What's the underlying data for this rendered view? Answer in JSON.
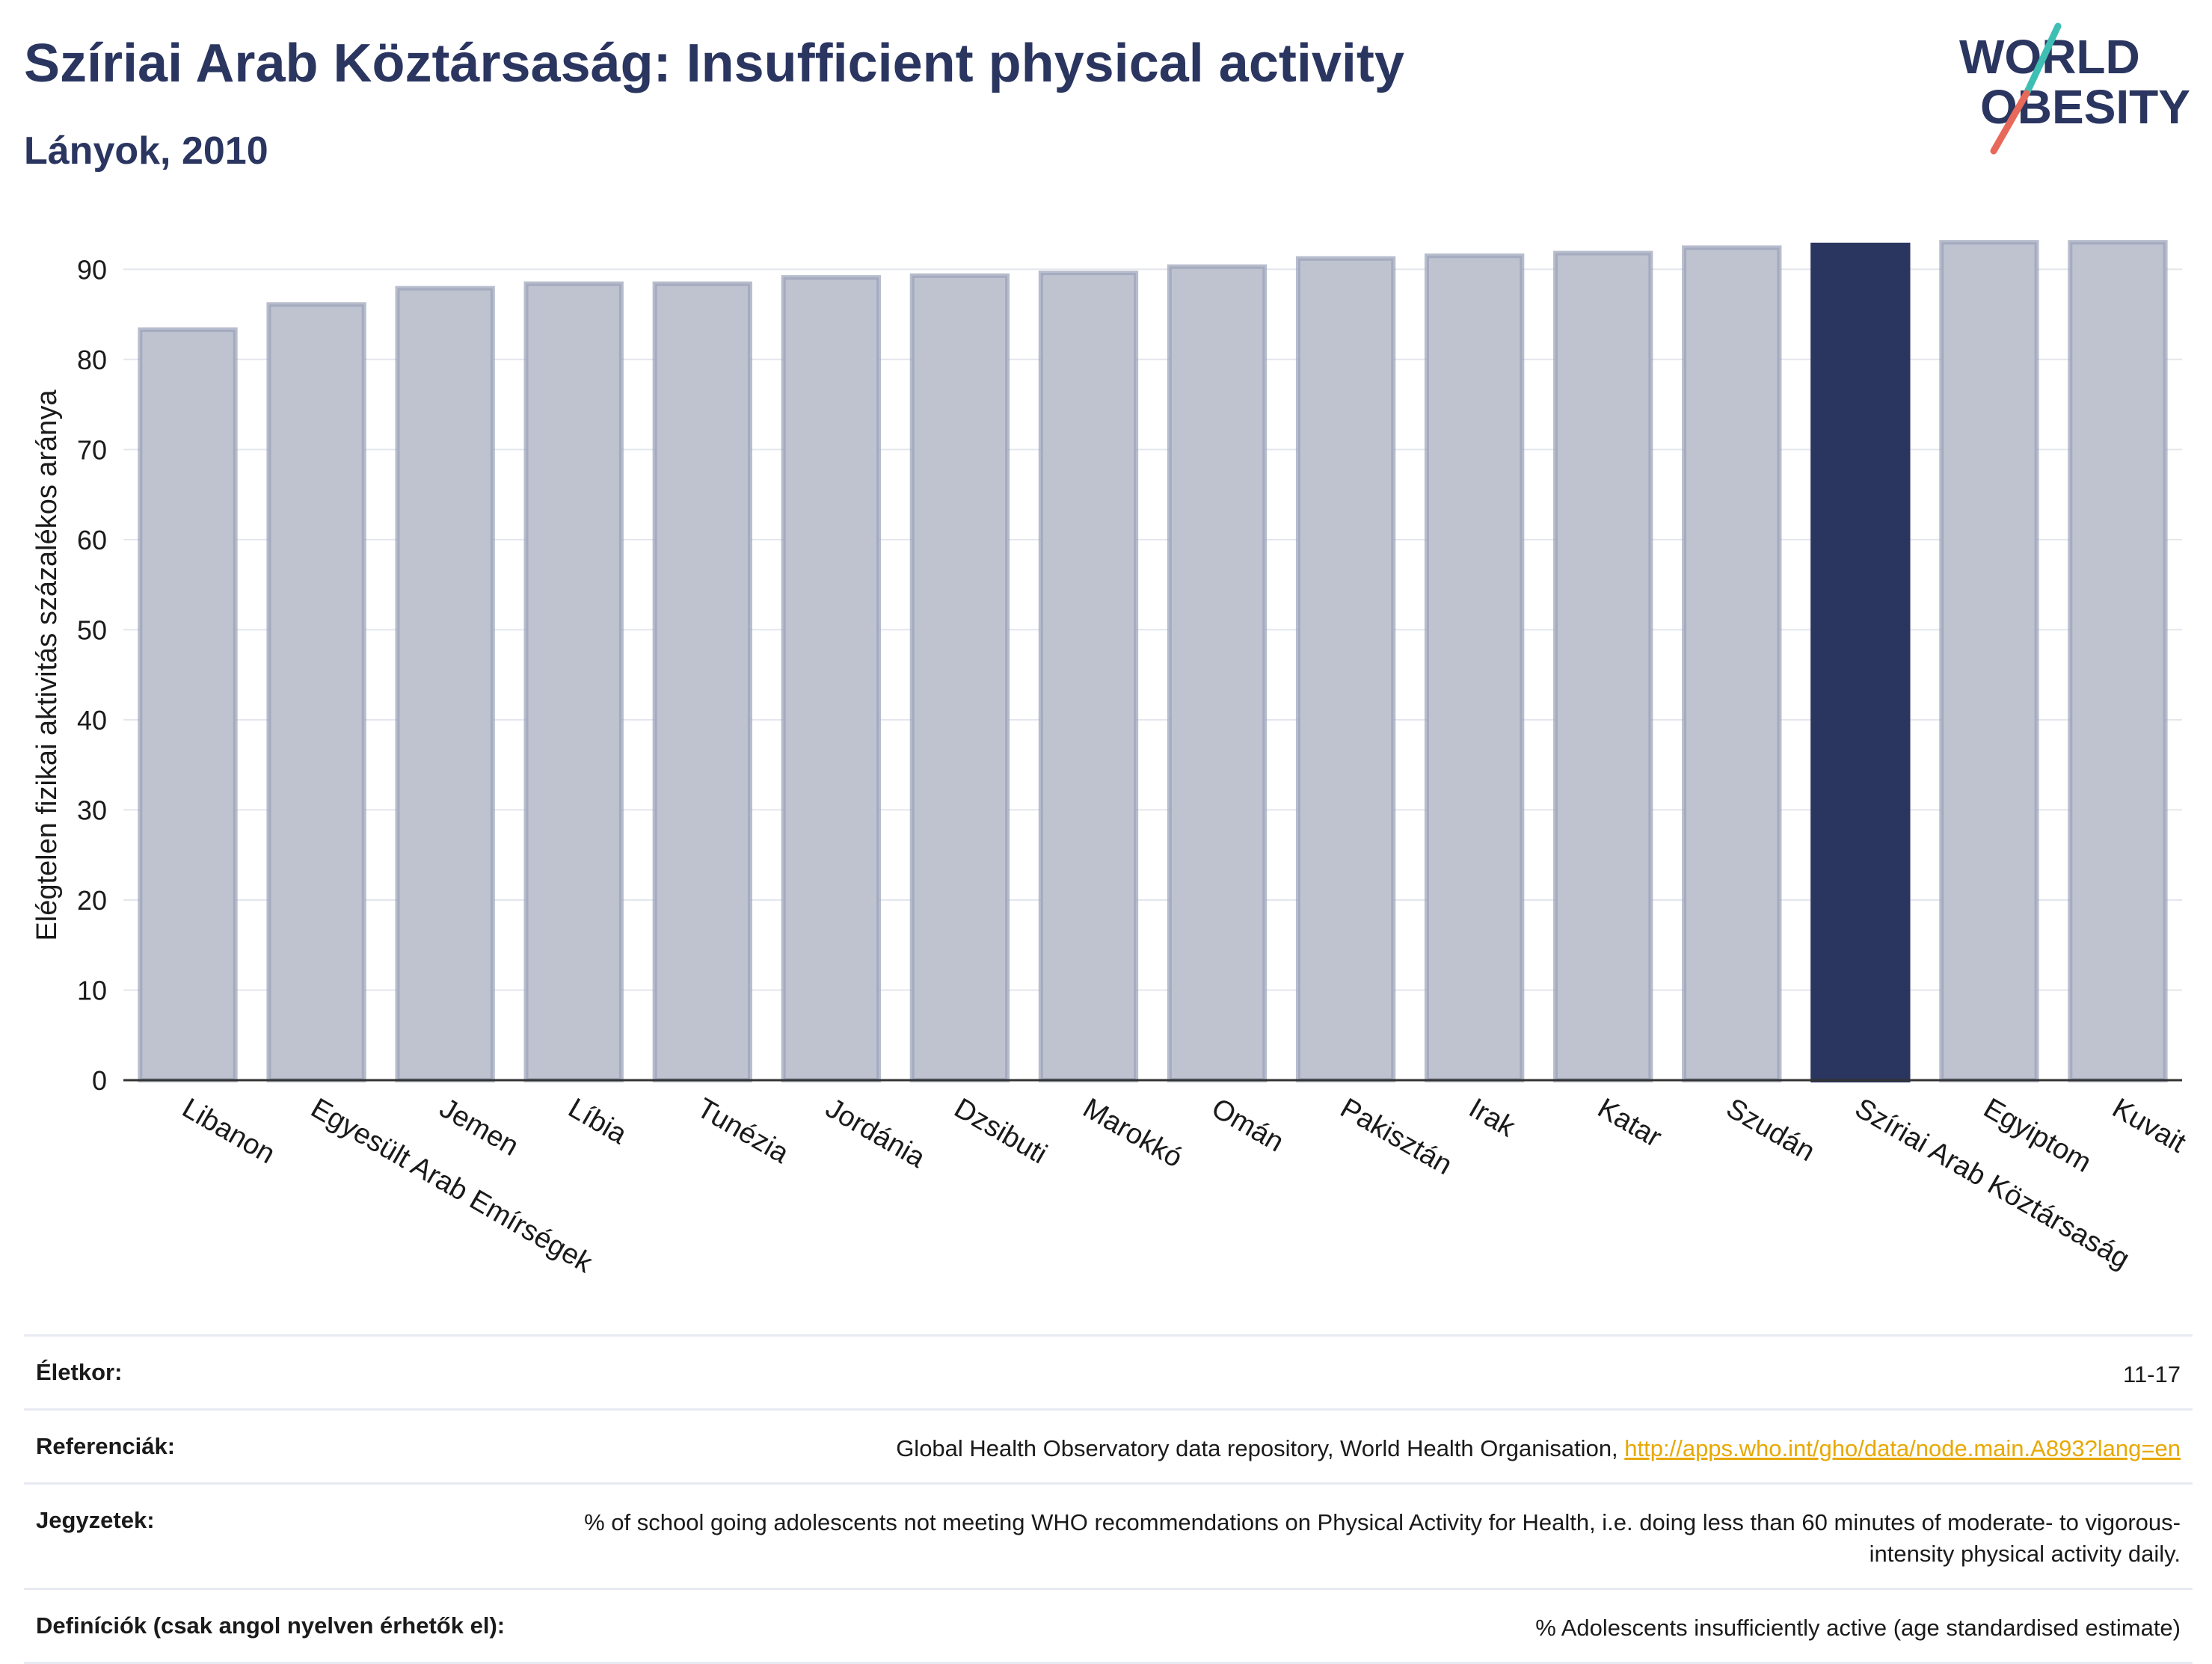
{
  "header": {
    "title": "Szíriai Arab Köztársaság: Insufficient physical activity",
    "subtitle": "Lányok, 2010"
  },
  "logo": {
    "line1": "WORLD",
    "line2": "OBESITY",
    "colors": {
      "text": "#2a3560",
      "slash_teal": "#3fbfb4",
      "slash_red": "#e8685a"
    }
  },
  "colors": {
    "bar_default": "#bfc3d0",
    "bar_default_stroke": "#9aa1b8",
    "bar_highlight": "#2a3560",
    "grid": "#e4e6ee",
    "axis": "#333333"
  },
  "chart_data": {
    "type": "bar",
    "ylabel": "Elégtelen fizikai aktivitás százalékos aránya",
    "xlabel": "",
    "ylim": [
      0,
      95
    ],
    "yticks": [
      0,
      10,
      20,
      30,
      40,
      50,
      60,
      70,
      80,
      90
    ],
    "grid": true,
    "highlight": "Szíriai Arab Köztársaság",
    "categories": [
      "Libanon",
      "Egyesült Arab Emírségek",
      "Jemen",
      "Líbia",
      "Tunézia",
      "Jordánia",
      "Dzsibuti",
      "Marokkó",
      "Omán",
      "Pakisztán",
      "Irak",
      "Katar",
      "Szudán",
      "Szíriai Arab Köztársaság",
      "Egyiptom",
      "Kuvait"
    ],
    "values": [
      83.3,
      86.1,
      87.9,
      88.4,
      88.4,
      89.1,
      89.3,
      89.6,
      90.3,
      91.2,
      91.5,
      91.8,
      92.4,
      92.7,
      93.0,
      93.0
    ]
  },
  "footer": {
    "rows": [
      {
        "label": "Életkor:",
        "value": "11-17"
      },
      {
        "label": "Referenciák:",
        "value": "Global Health Observatory data repository, World Health Organisation, ",
        "link": "http://apps.who.int/gho/data/node.main.A893?lang=en"
      },
      {
        "label": "Jegyzetek:",
        "value": "% of school going adolescents not meeting WHO recommendations on Physical Activity for Health, i.e. doing less than 60 minutes of moderate- to vigorous-intensity physical activity daily."
      },
      {
        "label": "Definíciók (csak angol nyelven érhetők el):",
        "value": "% Adolescents insufficiently active (age standardised estimate)"
      }
    ]
  }
}
